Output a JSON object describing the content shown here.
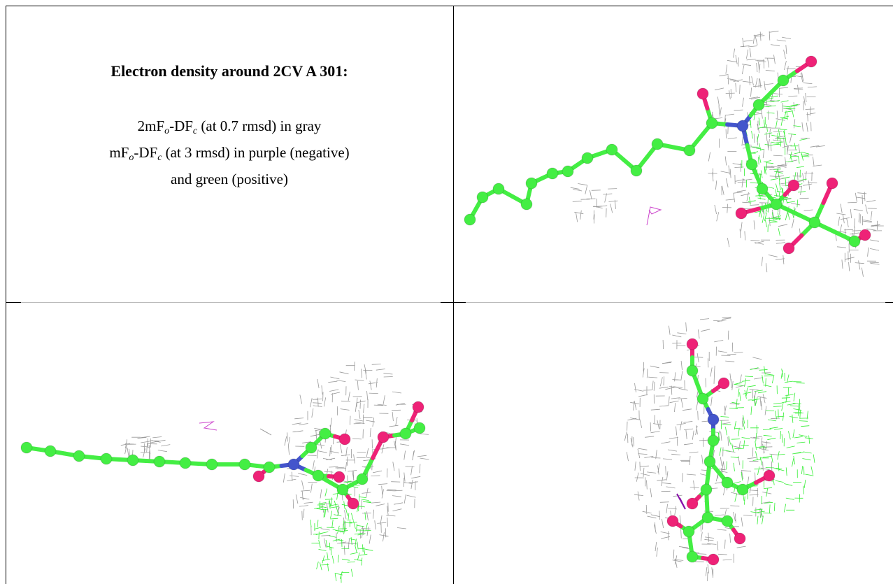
{
  "caption": {
    "title": "Electron density around 2CV A 301:",
    "lines": [
      [
        "2mF",
        "o",
        "-DF",
        "c",
        " (at 0.7 rmsd) in gray"
      ],
      [
        "mF",
        "o",
        "-DF",
        "c",
        " (at 3 rmsd) in purple (negative)"
      ],
      [
        "and green (positive)"
      ]
    ]
  }
}
